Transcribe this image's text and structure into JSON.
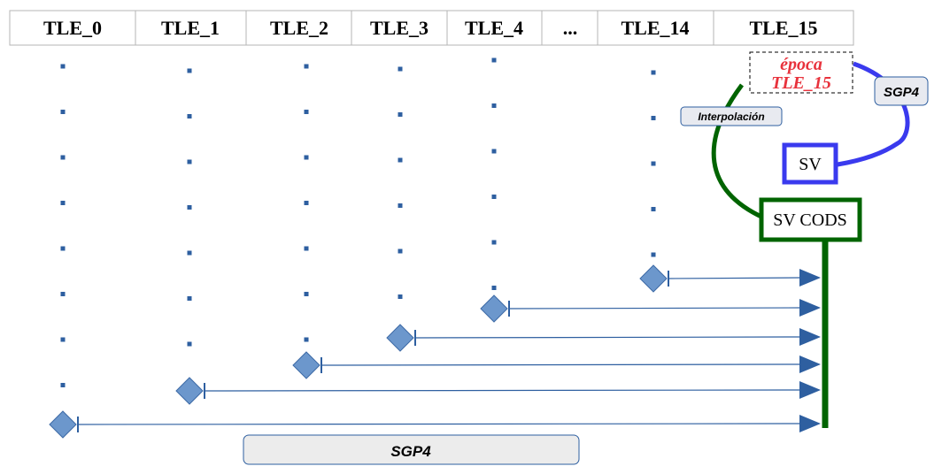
{
  "header": {
    "columns": [
      "TLE_0",
      "TLE_1",
      "TLE_2",
      "TLE_3",
      "TLE_4",
      "...",
      "TLE_14",
      "TLE_15"
    ]
  },
  "epoch_box": {
    "line1": "época",
    "line2": "TLE_15",
    "color": "#e8323c"
  },
  "labels": {
    "sgp4_top": "SGP4",
    "interpolacion": "Interpolación",
    "sv": "SV",
    "sv_cods": "SV CODS",
    "sgp4_bottom": "SGP4"
  },
  "colors": {
    "dot": "#2e5fa0",
    "diamond_fill": "#6c97cc",
    "diamond_stroke": "#3d6aa6",
    "arrow": "#2e5fa0",
    "green": "#006400",
    "blue": "#3a3aee",
    "label_box": "#e8eaf0"
  },
  "chart_data": {
    "type": "diagram",
    "columns": [
      {
        "name": "TLE_0",
        "propagated_points": 8,
        "reaches_sv_cods": true
      },
      {
        "name": "TLE_1",
        "propagated_points": 7,
        "reaches_sv_cods": true
      },
      {
        "name": "TLE_2",
        "propagated_points": 7,
        "reaches_sv_cods": true
      },
      {
        "name": "TLE_3",
        "propagated_points": 6,
        "reaches_sv_cods": true
      },
      {
        "name": "TLE_4",
        "propagated_points": 6,
        "reaches_sv_cods": true
      },
      {
        "name": "TLE_14",
        "propagated_points": 5,
        "reaches_sv_cods": true
      }
    ],
    "flow": [
      "TLE_15 época",
      "SGP4",
      "SV",
      "Interpolación",
      "SV CODS"
    ]
  }
}
